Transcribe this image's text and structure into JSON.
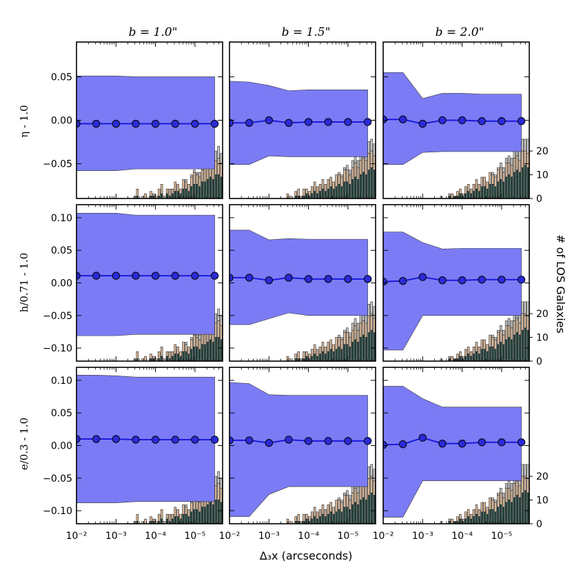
{
  "figure": {
    "xlabel": "Δ₃x (arcseconds)",
    "right_ylabel": "# of LOS Galaxies",
    "column_titles": [
      "b = 1.0\"",
      "b = 1.5\"",
      "b = 2.0\""
    ],
    "row_ylabels": [
      "η - 1.0",
      "h/0.71 - 1.0",
      "e/0.3 - 1.0"
    ],
    "x_tick_labels": [
      "10⁻²",
      "10⁻³",
      "10⁻⁴",
      "10⁻⁵"
    ],
    "right_tick_labels": [
      "0",
      "10",
      "20"
    ]
  },
  "colors": {
    "band": "#7b7bf5",
    "line": "#1a1adc",
    "marker": "#2a2ad8",
    "hist_dark": "#24463f",
    "hist_tan": "#d9b89a",
    "hist_light": "#c8c8c8"
  },
  "chart_data": {
    "type": "line",
    "x_log_exponents": [
      -2.0,
      -2.5,
      -3.0,
      -3.5,
      -4.0,
      -4.5,
      -5.0,
      -5.5
    ],
    "x_axis_exponent_range": [
      -2.0,
      -5.7
    ],
    "hist_range": [
      0,
      27
    ],
    "hist_exponent_bins": [
      -2.0,
      -5.7
    ],
    "rows": [
      {
        "ylabel": "η - 1.0",
        "ylim": [
          -0.09,
          0.09
        ],
        "yticks": [
          -0.05,
          0.0,
          0.05
        ],
        "ytick_labels": [
          "−0.05",
          "0.00",
          "0.05"
        ],
        "panels": [
          {
            "title": "b = 1.0\"",
            "mean": [
              -0.004,
              -0.004,
              -0.004,
              -0.004,
              -0.004,
              -0.004,
              -0.004,
              -0.004
            ],
            "upper": [
              0.051,
              0.051,
              0.051,
              0.05,
              0.05,
              0.05,
              0.05,
              0.05
            ],
            "lower": [
              -0.058,
              -0.058,
              -0.058,
              -0.056,
              -0.056,
              -0.056,
              -0.056,
              -0.056
            ]
          },
          {
            "title": "b = 1.5\"",
            "mean": [
              -0.003,
              -0.003,
              0.0,
              -0.003,
              -0.002,
              -0.002,
              -0.002,
              -0.002
            ],
            "upper": [
              0.045,
              0.044,
              0.04,
              0.034,
              0.035,
              0.035,
              0.035,
              0.035
            ],
            "lower": [
              -0.051,
              -0.051,
              -0.041,
              -0.042,
              -0.042,
              -0.042,
              -0.042,
              -0.042
            ]
          },
          {
            "title": "b = 2.0\"",
            "mean": [
              0.001,
              0.001,
              -0.004,
              0.0,
              0.0,
              -0.001,
              -0.001,
              -0.001
            ],
            "upper": [
              0.055,
              0.055,
              0.025,
              0.031,
              0.031,
              0.03,
              0.03,
              0.03
            ],
            "lower": [
              -0.051,
              -0.051,
              -0.037,
              -0.036,
              -0.036,
              -0.036,
              -0.036,
              -0.036
            ]
          }
        ]
      },
      {
        "ylabel": "h/0.71 - 1.0",
        "ylim": [
          -0.12,
          0.12
        ],
        "yticks": [
          -0.1,
          -0.05,
          0.0,
          0.05,
          0.1
        ],
        "ytick_labels": [
          "−0.10",
          "−0.05",
          "0.00",
          "0.05",
          "0.10"
        ],
        "panels": [
          {
            "title": "b = 1.0\"",
            "mean": [
              0.011,
              0.011,
              0.011,
              0.011,
              0.011,
              0.011,
              0.011,
              0.011
            ],
            "upper": [
              0.107,
              0.107,
              0.107,
              0.104,
              0.104,
              0.104,
              0.104,
              0.104
            ],
            "lower": [
              -0.081,
              -0.081,
              -0.081,
              -0.079,
              -0.079,
              -0.079,
              -0.079,
              -0.079
            ]
          },
          {
            "title": "b = 1.5\"",
            "mean": [
              0.008,
              0.008,
              0.004,
              0.008,
              0.006,
              0.006,
              0.006,
              0.006
            ],
            "upper": [
              0.081,
              0.081,
              0.066,
              0.068,
              0.067,
              0.067,
              0.067,
              0.067
            ],
            "lower": [
              -0.064,
              -0.064,
              -0.055,
              -0.046,
              -0.05,
              -0.05,
              -0.05,
              -0.05
            ]
          },
          {
            "title": "b = 2.0\"",
            "mean": [
              0.002,
              0.003,
              0.009,
              0.004,
              0.004,
              0.005,
              0.005,
              0.005
            ],
            "upper": [
              0.078,
              0.078,
              0.062,
              0.052,
              0.053,
              0.053,
              0.053,
              0.053
            ],
            "lower": [
              -0.103,
              -0.103,
              -0.05,
              -0.05,
              -0.05,
              -0.05,
              -0.05,
              -0.05
            ]
          }
        ]
      },
      {
        "ylabel": "e/0.3 - 1.0",
        "ylim": [
          -0.12,
          0.12
        ],
        "yticks": [
          -0.1,
          -0.05,
          0.0,
          0.05,
          0.1
        ],
        "ytick_labels": [
          "−0.10",
          "−0.05",
          "0.00",
          "0.05",
          "0.10"
        ],
        "panels": [
          {
            "title": "b = 1.0\"",
            "mean": [
              0.01,
              0.01,
              0.01,
              0.009,
              0.009,
              0.009,
              0.009,
              0.009
            ],
            "upper": [
              0.108,
              0.108,
              0.107,
              0.105,
              0.105,
              0.105,
              0.105,
              0.105
            ],
            "lower": [
              -0.088,
              -0.088,
              -0.088,
              -0.086,
              -0.086,
              -0.086,
              -0.086,
              -0.086
            ]
          },
          {
            "title": "b = 1.5\"",
            "mean": [
              0.008,
              0.008,
              0.004,
              0.009,
              0.007,
              0.007,
              0.007,
              0.007
            ],
            "upper": [
              0.097,
              0.095,
              0.078,
              0.077,
              0.077,
              0.077,
              0.077,
              0.077
            ],
            "lower": [
              -0.109,
              -0.109,
              -0.075,
              -0.063,
              -0.063,
              -0.063,
              -0.063,
              -0.063
            ]
          },
          {
            "title": "b = 2.0\"",
            "mean": [
              0.001,
              0.002,
              0.012,
              0.003,
              0.003,
              0.005,
              0.005,
              0.005
            ],
            "upper": [
              0.091,
              0.091,
              0.072,
              0.059,
              0.059,
              0.059,
              0.059,
              0.059
            ],
            "lower": [
              -0.11,
              -0.11,
              -0.054,
              -0.054,
              -0.054,
              -0.054,
              -0.054,
              -0.054
            ]
          }
        ]
      }
    ],
    "histograms": {
      "note": "Counts of LOS galaxies per log-spaced x bin, read off the right axis (0-27); same in every row.",
      "columns": [
        {
          "title": "b = 1.0\"",
          "dark": [
            0,
            0,
            0,
            0,
            0,
            0,
            0,
            0,
            0,
            0,
            0,
            0,
            0,
            0,
            0,
            0,
            0,
            0,
            0,
            0,
            0,
            0,
            1,
            0,
            0,
            0,
            0,
            1,
            1,
            0,
            1,
            2,
            0,
            2,
            1,
            2,
            3,
            3,
            2,
            4,
            4,
            3,
            5,
            6,
            6,
            5,
            7,
            7,
            8,
            9,
            8,
            10,
            10,
            9
          ],
          "tan": [
            0,
            0,
            0,
            0,
            0,
            0,
            0,
            0,
            0,
            0,
            0,
            0,
            0,
            0,
            0,
            0,
            0,
            0,
            0,
            0,
            0,
            1,
            3,
            0,
            1,
            2,
            0,
            2,
            1,
            1,
            3,
            4,
            1,
            2,
            3,
            2,
            4,
            3,
            2,
            4,
            3,
            3,
            4,
            5,
            4,
            4,
            5,
            6,
            5,
            5,
            6,
            6,
            7,
            6
          ],
          "light": [
            0,
            0,
            0,
            0,
            0,
            0,
            0,
            0,
            0,
            0,
            0,
            0,
            0,
            0,
            0,
            0,
            0,
            0,
            0,
            0,
            0,
            0,
            0,
            0,
            0,
            0,
            0,
            0,
            0,
            0,
            0,
            0,
            0,
            0,
            0,
            0,
            0,
            0,
            0,
            0,
            1,
            0,
            1,
            1,
            1,
            2,
            3,
            2,
            3,
            4,
            3,
            4,
            5,
            4
          ]
        },
        {
          "title": "b = 1.5\"",
          "dark": [
            0,
            0,
            0,
            0,
            0,
            0,
            0,
            0,
            0,
            0,
            0,
            0,
            0,
            0,
            0,
            0,
            0,
            0,
            0,
            0,
            0,
            0,
            0,
            0,
            1,
            1,
            0,
            1,
            2,
            1,
            2,
            3,
            2,
            3,
            4,
            3,
            4,
            5,
            4,
            5,
            6,
            5,
            7,
            7,
            6,
            8,
            9,
            8,
            10,
            11,
            10,
            12,
            13,
            12
          ],
          "tan": [
            0,
            0,
            0,
            0,
            0,
            0,
            0,
            0,
            0,
            0,
            0,
            0,
            0,
            0,
            0,
            0,
            0,
            0,
            0,
            0,
            0,
            2,
            1,
            0,
            2,
            3,
            1,
            3,
            2,
            2,
            3,
            4,
            3,
            3,
            4,
            3,
            4,
            4,
            3,
            5,
            4,
            4,
            5,
            5,
            4,
            5,
            6,
            5,
            6,
            6,
            6,
            7,
            7,
            6
          ],
          "light": [
            0,
            0,
            0,
            0,
            0,
            0,
            0,
            0,
            0,
            0,
            0,
            0,
            0,
            0,
            0,
            0,
            0,
            0,
            0,
            0,
            0,
            0,
            0,
            0,
            0,
            0,
            0,
            0,
            0,
            0,
            0,
            0,
            0,
            0,
            0,
            0,
            0,
            0,
            0,
            0,
            1,
            1,
            1,
            2,
            2,
            3,
            3,
            3,
            4,
            4,
            4,
            5,
            5,
            5
          ]
        },
        {
          "title": "b = 2.0\"",
          "dark": [
            0,
            0,
            0,
            0,
            0,
            0,
            0,
            0,
            0,
            0,
            0,
            0,
            0,
            0,
            0,
            0,
            0,
            0,
            0,
            0,
            0,
            0,
            0,
            0,
            1,
            0,
            1,
            1,
            2,
            1,
            2,
            3,
            2,
            3,
            4,
            3,
            5,
            5,
            4,
            6,
            6,
            5,
            7,
            8,
            7,
            9,
            10,
            9,
            11,
            12,
            11,
            13,
            14,
            13
          ],
          "tan": [
            0,
            0,
            0,
            0,
            0,
            0,
            0,
            0,
            0,
            0,
            0,
            0,
            0,
            0,
            0,
            0,
            0,
            0,
            0,
            0,
            0,
            1,
            0,
            0,
            1,
            2,
            0,
            2,
            2,
            1,
            3,
            3,
            2,
            3,
            4,
            3,
            4,
            4,
            3,
            5,
            4,
            4,
            5,
            5,
            4,
            6,
            5,
            5,
            6,
            6,
            5,
            7,
            6,
            6
          ],
          "light": [
            0,
            0,
            0,
            0,
            0,
            0,
            0,
            0,
            0,
            0,
            0,
            0,
            0,
            0,
            0,
            0,
            0,
            0,
            0,
            0,
            0,
            0,
            0,
            0,
            0,
            0,
            0,
            0,
            0,
            0,
            0,
            0,
            0,
            0,
            0,
            0,
            0,
            0,
            0,
            0,
            1,
            1,
            1,
            2,
            2,
            2,
            3,
            3,
            3,
            4,
            4,
            5,
            5,
            6
          ]
        }
      ]
    }
  }
}
